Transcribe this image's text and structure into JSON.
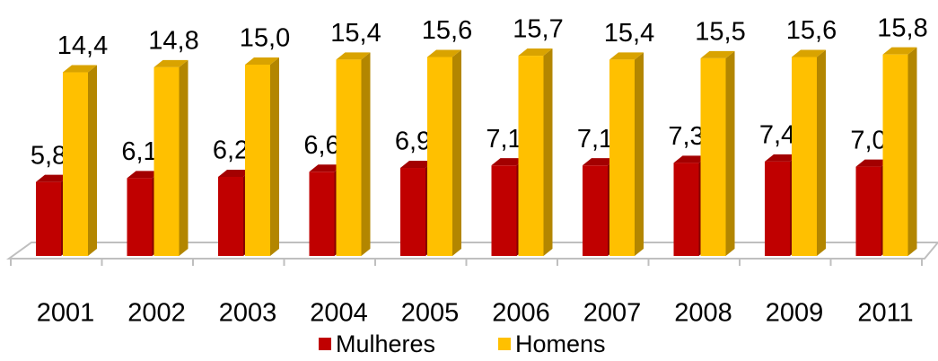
{
  "chart_data": {
    "type": "bar",
    "categories": [
      "2001",
      "2002",
      "2003",
      "2004",
      "2005",
      "2006",
      "2007",
      "2008",
      "2009",
      "2011"
    ],
    "series": [
      {
        "name": "Mulheres",
        "color": "#c00000",
        "values": [
          5.8,
          6.1,
          6.2,
          6.6,
          6.9,
          7.1,
          7.1,
          7.3,
          7.4,
          7.0
        ],
        "value_labels": [
          "5,8",
          "6,1",
          "6,2",
          "6,6",
          "6,9",
          "7,1",
          "7,1",
          "7,3",
          "7,4",
          "7,0"
        ]
      },
      {
        "name": "Homens",
        "color": "#ffc000",
        "values": [
          14.4,
          14.8,
          15.0,
          15.4,
          15.6,
          15.7,
          15.4,
          15.5,
          15.6,
          15.8
        ],
        "value_labels": [
          "14,4",
          "14,8",
          "15,0",
          "15,4",
          "15,6",
          "15,7",
          "15,4",
          "15,5",
          "15,6",
          "15,8"
        ]
      }
    ],
    "legend": "bottom"
  }
}
